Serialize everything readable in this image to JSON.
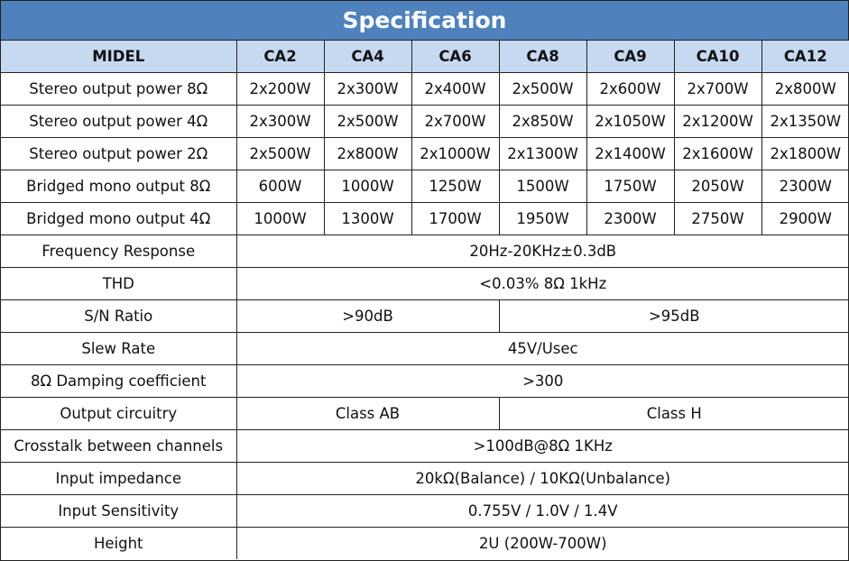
{
  "title": "Specification",
  "colors": {
    "title_bg": "#4f81bd",
    "header_bg": "#c6d9f1",
    "border": "#222222"
  },
  "header": [
    "MIDEL",
    "CA2",
    "CA4",
    "CA6",
    "CA8",
    "CA9",
    "CA10",
    "CA12"
  ],
  "rows": [
    {
      "label": "Stereo output power 8Ω",
      "cells": [
        {
          "v": "2x200W",
          "span": 1
        },
        {
          "v": "2x300W",
          "span": 1
        },
        {
          "v": "2x400W",
          "span": 1
        },
        {
          "v": "2x500W",
          "span": 1
        },
        {
          "v": "2x600W",
          "span": 1
        },
        {
          "v": "2x700W",
          "span": 1
        },
        {
          "v": "2x800W",
          "span": 1
        }
      ]
    },
    {
      "label": "Stereo output power 4Ω",
      "cells": [
        {
          "v": "2x300W",
          "span": 1
        },
        {
          "v": "2x500W",
          "span": 1
        },
        {
          "v": "2x700W",
          "span": 1
        },
        {
          "v": "2x850W",
          "span": 1
        },
        {
          "v": "2x1050W",
          "span": 1
        },
        {
          "v": "2x1200W",
          "span": 1
        },
        {
          "v": "2x1350W",
          "span": 1
        }
      ]
    },
    {
      "label": "Stereo output power 2Ω",
      "cells": [
        {
          "v": "2x500W",
          "span": 1
        },
        {
          "v": "2x800W",
          "span": 1
        },
        {
          "v": "2x1000W",
          "span": 1
        },
        {
          "v": "2x1300W",
          "span": 1
        },
        {
          "v": "2x1400W",
          "span": 1
        },
        {
          "v": "2x1600W",
          "span": 1
        },
        {
          "v": "2x1800W",
          "span": 1
        }
      ]
    },
    {
      "label": "Bridged mono output 8Ω",
      "cells": [
        {
          "v": "600W",
          "span": 1
        },
        {
          "v": "1000W",
          "span": 1
        },
        {
          "v": "1250W",
          "span": 1
        },
        {
          "v": "1500W",
          "span": 1
        },
        {
          "v": "1750W",
          "span": 1
        },
        {
          "v": "2050W",
          "span": 1
        },
        {
          "v": "2300W",
          "span": 1
        }
      ]
    },
    {
      "label": "Bridged mono output 4Ω",
      "cells": [
        {
          "v": "1000W",
          "span": 1
        },
        {
          "v": "1300W",
          "span": 1
        },
        {
          "v": "1700W",
          "span": 1
        },
        {
          "v": "1950W",
          "span": 1
        },
        {
          "v": "2300W",
          "span": 1
        },
        {
          "v": "2750W",
          "span": 1
        },
        {
          "v": "2900W",
          "span": 1
        }
      ]
    },
    {
      "label": "Frequency Response",
      "cells": [
        {
          "v": "20Hz-20KHz±0.3dB",
          "span": 7
        }
      ]
    },
    {
      "label": "THD",
      "cells": [
        {
          "v": "<0.03% 8Ω 1kHz",
          "span": 7
        }
      ]
    },
    {
      "label": "S/N Ratio",
      "cells": [
        {
          "v": ">90dB",
          "span": 3
        },
        {
          "v": ">95dB",
          "span": 4
        }
      ]
    },
    {
      "label": "Slew Rate",
      "cells": [
        {
          "v": "45V/Usec",
          "span": 7
        }
      ]
    },
    {
      "label": "8Ω Damping coefficient",
      "cells": [
        {
          "v": ">300",
          "span": 7
        }
      ]
    },
    {
      "label": "Output circuitry",
      "cells": [
        {
          "v": "Class AB",
          "span": 3
        },
        {
          "v": "Class H",
          "span": 4
        }
      ]
    },
    {
      "label": "Crosstalk between channels",
      "cells": [
        {
          "v": ">100dB@8Ω 1KHz",
          "span": 7
        }
      ]
    },
    {
      "label": "Input impedance",
      "cells": [
        {
          "v": "20kΩ(Balance) / 10KΩ(Unbalance)",
          "span": 7
        }
      ]
    },
    {
      "label": "Input Sensitivity",
      "cells": [
        {
          "v": "0.755V / 1.0V / 1.4V",
          "span": 7
        }
      ]
    },
    {
      "label": "Height",
      "cells": [
        {
          "v": "2U (200W-700W)",
          "span": 7
        }
      ]
    }
  ]
}
